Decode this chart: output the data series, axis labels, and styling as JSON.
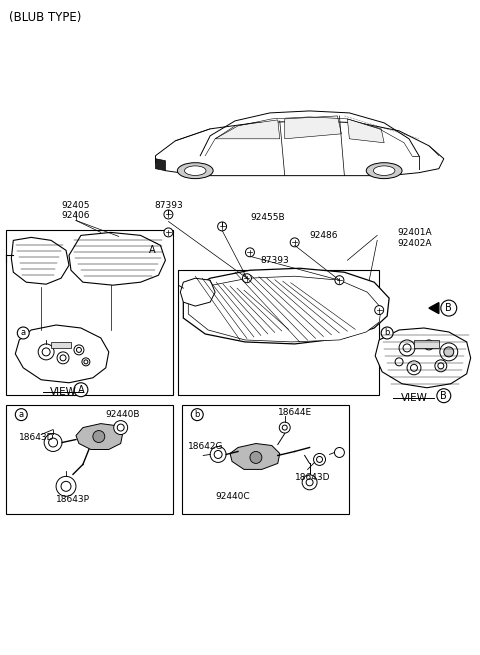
{
  "bg": "#ffffff",
  "lc": "#000000",
  "title": "(BLUB TYPE)",
  "labels": {
    "p92405_92406": "92405\n92406",
    "p87393_a": "87393",
    "p92455B": "92455B",
    "p92486": "92486",
    "p87393_b": "87393",
    "p92401A_92402A": "92401A\n92402A",
    "view_A": "VIEW",
    "view_B": "VIEW",
    "a_label": "a",
    "b_label": "b",
    "A_label": "A",
    "B_label": "B",
    "p92440B": "92440B",
    "p18643D_a": "18643D",
    "p18643P": "18643P",
    "p18644E": "18644E",
    "p18642G": "18642G",
    "p92440C": "92440C",
    "p18643D_b": "18643D"
  },
  "fs": 6.5,
  "fs_title": 8.5,
  "fs_view": 7.5
}
